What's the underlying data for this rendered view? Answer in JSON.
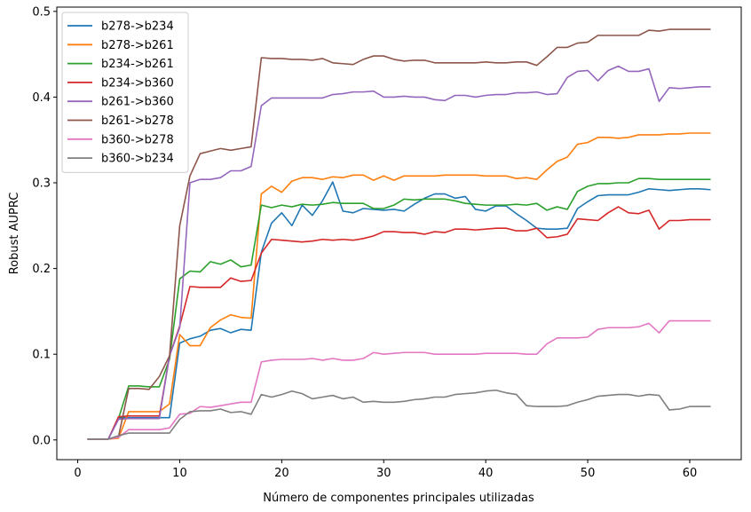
{
  "chart_data": {
    "type": "line",
    "title": "",
    "xlabel": "Número de componentes principales utilizadas",
    "ylabel": "Robust AUPRC",
    "xlim": [
      -2.05,
      65.05
    ],
    "ylim": [
      -0.023,
      0.505
    ],
    "xticks": [
      "0",
      "10",
      "20",
      "30",
      "40",
      "50",
      "60"
    ],
    "yticks": [
      "0.0",
      "0.1",
      "0.2",
      "0.3",
      "0.4",
      "0.5"
    ],
    "legend_position": "upper-left",
    "grid": false,
    "x": [
      1,
      2,
      3,
      4,
      5,
      6,
      7,
      8,
      9,
      10,
      11,
      12,
      13,
      14,
      15,
      16,
      17,
      18,
      19,
      20,
      21,
      22,
      23,
      24,
      25,
      26,
      27,
      28,
      29,
      30,
      31,
      32,
      33,
      34,
      35,
      36,
      37,
      38,
      39,
      40,
      41,
      42,
      43,
      44,
      45,
      46,
      47,
      48,
      49,
      50,
      51,
      52,
      53,
      54,
      55,
      56,
      57,
      58,
      59,
      60,
      61,
      62
    ],
    "series": [
      {
        "name": "b278->b234",
        "color": "#1f77b4",
        "values": [
          0.001,
          0.001,
          0.001,
          0.026,
          0.026,
          0.026,
          0.026,
          0.026,
          0.026,
          0.113,
          0.118,
          0.121,
          0.128,
          0.13,
          0.125,
          0.129,
          0.128,
          0.219,
          0.253,
          0.265,
          0.25,
          0.274,
          0.262,
          0.279,
          0.301,
          0.267,
          0.265,
          0.27,
          0.269,
          0.268,
          0.269,
          0.267,
          0.275,
          0.282,
          0.287,
          0.287,
          0.282,
          0.284,
          0.269,
          0.267,
          0.273,
          0.273,
          0.264,
          0.256,
          0.247,
          0.246,
          0.246,
          0.247,
          0.27,
          0.278,
          0.285,
          0.286,
          0.286,
          0.286,
          0.289,
          0.293,
          0.292,
          0.291,
          0.292,
          0.293,
          0.293,
          0.292
        ]
      },
      {
        "name": "b278->b261",
        "color": "#ff7f0e",
        "values": [
          0.001,
          0.001,
          0.001,
          0.002,
          0.033,
          0.033,
          0.033,
          0.033,
          0.042,
          0.123,
          0.11,
          0.11,
          0.131,
          0.14,
          0.146,
          0.143,
          0.142,
          0.287,
          0.296,
          0.289,
          0.302,
          0.306,
          0.306,
          0.304,
          0.307,
          0.306,
          0.309,
          0.309,
          0.303,
          0.308,
          0.303,
          0.308,
          0.308,
          0.308,
          0.308,
          0.309,
          0.309,
          0.309,
          0.309,
          0.308,
          0.308,
          0.308,
          0.305,
          0.306,
          0.304,
          0.315,
          0.325,
          0.33,
          0.345,
          0.347,
          0.353,
          0.353,
          0.352,
          0.353,
          0.356,
          0.356,
          0.356,
          0.357,
          0.357,
          0.358,
          0.358,
          0.358
        ]
      },
      {
        "name": "b234->b261",
        "color": "#2ca02c",
        "values": [
          0.001,
          0.001,
          0.001,
          0.025,
          0.063,
          0.063,
          0.062,
          0.062,
          0.094,
          0.188,
          0.197,
          0.196,
          0.208,
          0.205,
          0.21,
          0.202,
          0.204,
          0.274,
          0.271,
          0.274,
          0.272,
          0.275,
          0.274,
          0.275,
          0.277,
          0.276,
          0.276,
          0.276,
          0.27,
          0.27,
          0.274,
          0.281,
          0.28,
          0.281,
          0.281,
          0.281,
          0.279,
          0.276,
          0.275,
          0.274,
          0.274,
          0.274,
          0.275,
          0.274,
          0.276,
          0.268,
          0.272,
          0.269,
          0.29,
          0.296,
          0.299,
          0.299,
          0.3,
          0.3,
          0.305,
          0.305,
          0.304,
          0.304,
          0.304,
          0.304,
          0.304,
          0.304
        ]
      },
      {
        "name": "b234->b360",
        "color": "#d62728",
        "values": [
          0.001,
          0.001,
          0.001,
          0.027,
          0.028,
          0.028,
          0.028,
          0.028,
          0.098,
          0.133,
          0.179,
          0.178,
          0.178,
          0.178,
          0.189,
          0.185,
          0.186,
          0.218,
          0.234,
          0.233,
          0.232,
          0.231,
          0.232,
          0.234,
          0.233,
          0.234,
          0.233,
          0.235,
          0.238,
          0.243,
          0.243,
          0.242,
          0.242,
          0.24,
          0.243,
          0.242,
          0.246,
          0.246,
          0.245,
          0.246,
          0.247,
          0.247,
          0.244,
          0.244,
          0.247,
          0.236,
          0.237,
          0.24,
          0.258,
          0.257,
          0.256,
          0.265,
          0.272,
          0.265,
          0.264,
          0.268,
          0.246,
          0.256,
          0.256,
          0.257,
          0.257,
          0.257
        ]
      },
      {
        "name": "b261->b360",
        "color": "#9467bd",
        "values": [
          0.001,
          0.001,
          0.001,
          0.024,
          0.025,
          0.025,
          0.025,
          0.025,
          0.098,
          0.131,
          0.3,
          0.304,
          0.304,
          0.306,
          0.314,
          0.314,
          0.319,
          0.39,
          0.399,
          0.399,
          0.399,
          0.399,
          0.399,
          0.399,
          0.403,
          0.404,
          0.406,
          0.406,
          0.407,
          0.4,
          0.4,
          0.401,
          0.4,
          0.4,
          0.397,
          0.396,
          0.402,
          0.402,
          0.4,
          0.402,
          0.403,
          0.403,
          0.405,
          0.405,
          0.406,
          0.403,
          0.404,
          0.423,
          0.43,
          0.431,
          0.419,
          0.431,
          0.436,
          0.43,
          0.43,
          0.433,
          0.395,
          0.411,
          0.41,
          0.411,
          0.412,
          0.412
        ]
      },
      {
        "name": "b261->b278",
        "color": "#8c564b",
        "values": [
          0.001,
          0.001,
          0.001,
          0.004,
          0.06,
          0.06,
          0.059,
          0.074,
          0.098,
          0.25,
          0.308,
          0.334,
          0.337,
          0.34,
          0.338,
          0.34,
          0.342,
          0.446,
          0.445,
          0.445,
          0.444,
          0.444,
          0.443,
          0.445,
          0.44,
          0.439,
          0.438,
          0.444,
          0.448,
          0.448,
          0.444,
          0.442,
          0.443,
          0.443,
          0.44,
          0.44,
          0.44,
          0.44,
          0.44,
          0.441,
          0.44,
          0.44,
          0.441,
          0.441,
          0.437,
          0.447,
          0.458,
          0.458,
          0.463,
          0.464,
          0.472,
          0.472,
          0.472,
          0.472,
          0.472,
          0.478,
          0.477,
          0.479,
          0.479,
          0.479,
          0.479,
          0.479
        ]
      },
      {
        "name": "b360->b278",
        "color": "#e377c2",
        "values": [
          0.001,
          0.001,
          0.001,
          0.003,
          0.012,
          0.012,
          0.012,
          0.012,
          0.014,
          0.03,
          0.031,
          0.039,
          0.038,
          0.04,
          0.042,
          0.044,
          0.044,
          0.091,
          0.093,
          0.094,
          0.094,
          0.094,
          0.095,
          0.093,
          0.095,
          0.093,
          0.093,
          0.095,
          0.102,
          0.1,
          0.101,
          0.102,
          0.102,
          0.102,
          0.1,
          0.1,
          0.1,
          0.1,
          0.1,
          0.101,
          0.101,
          0.101,
          0.101,
          0.1,
          0.1,
          0.112,
          0.119,
          0.119,
          0.119,
          0.12,
          0.129,
          0.131,
          0.131,
          0.131,
          0.132,
          0.136,
          0.125,
          0.139,
          0.139,
          0.139,
          0.139,
          0.139
        ]
      },
      {
        "name": "b360->b234",
        "color": "#7f7f7f",
        "values": [
          0.001,
          0.001,
          0.001,
          0.005,
          0.008,
          0.008,
          0.008,
          0.008,
          0.008,
          0.024,
          0.033,
          0.034,
          0.034,
          0.036,
          0.032,
          0.033,
          0.03,
          0.053,
          0.05,
          0.053,
          0.057,
          0.054,
          0.048,
          0.05,
          0.052,
          0.048,
          0.05,
          0.044,
          0.045,
          0.044,
          0.044,
          0.045,
          0.047,
          0.048,
          0.05,
          0.05,
          0.053,
          0.054,
          0.055,
          0.057,
          0.058,
          0.055,
          0.053,
          0.04,
          0.039,
          0.039,
          0.039,
          0.04,
          0.044,
          0.047,
          0.051,
          0.052,
          0.053,
          0.053,
          0.051,
          0.053,
          0.052,
          0.035,
          0.036,
          0.039,
          0.039,
          0.039
        ]
      }
    ]
  }
}
